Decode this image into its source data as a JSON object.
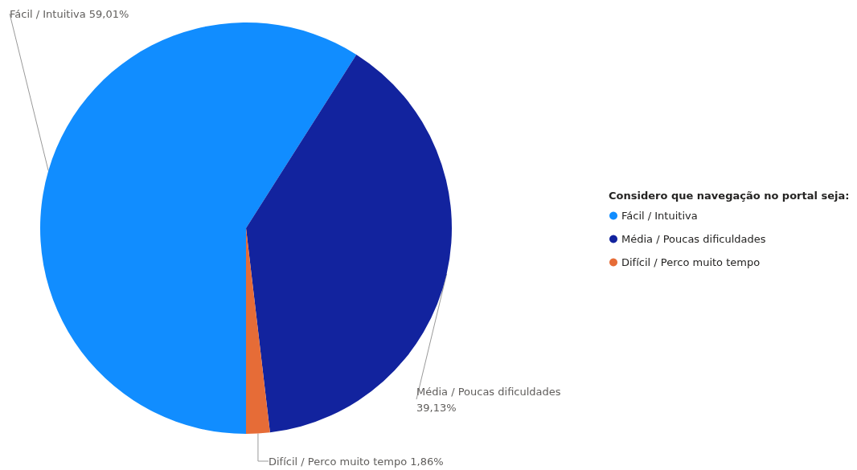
{
  "chart_data": {
    "type": "pie",
    "legend_title": "Considero que navegação no portal seja:",
    "legend": "right",
    "categories": [
      "Fácil / Intuitiva",
      "Média / Poucas dificuldades",
      "Difícil / Perco muito tempo"
    ],
    "values": [
      59.01,
      39.13,
      1.86
    ],
    "colors": [
      "#118dff",
      "#12239e",
      "#e66c37"
    ],
    "value_labels": [
      "59,01%",
      "39,13%",
      "1,86%"
    ]
  }
}
